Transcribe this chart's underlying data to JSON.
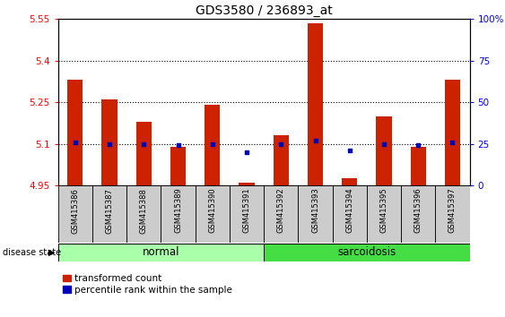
{
  "title": "GDS3580 / 236893_at",
  "samples": [
    "GSM415386",
    "GSM415387",
    "GSM415388",
    "GSM415389",
    "GSM415390",
    "GSM415391",
    "GSM415392",
    "GSM415393",
    "GSM415394",
    "GSM415395",
    "GSM415396",
    "GSM415397"
  ],
  "transformed_counts": [
    5.33,
    5.26,
    5.18,
    5.09,
    5.24,
    4.96,
    5.13,
    5.535,
    4.975,
    5.2,
    5.09,
    5.33
  ],
  "percentile_ranks": [
    26,
    25,
    25,
    24,
    25,
    20,
    25,
    27,
    21,
    25,
    24,
    26
  ],
  "disease_groups": [
    {
      "label": "normal",
      "start": 0,
      "end": 6,
      "color": "#AAFFAA"
    },
    {
      "label": "sarcoidosis",
      "start": 6,
      "end": 12,
      "color": "#44DD44"
    }
  ],
  "ylim_left": [
    4.95,
    5.55
  ],
  "ylim_right": [
    0,
    100
  ],
  "yticks_left": [
    4.95,
    5.1,
    5.25,
    5.4,
    5.55
  ],
  "yticks_right": [
    0,
    25,
    50,
    75,
    100
  ],
  "ytick_labels_left": [
    "4.95",
    "5.1",
    "5.25",
    "5.4",
    "5.55"
  ],
  "ytick_labels_right": [
    "0",
    "25",
    "50",
    "75",
    "100%"
  ],
  "bar_color": "#CC2200",
  "dot_color": "#0000BB",
  "bar_width": 0.45,
  "background_plot": "#ffffff",
  "title_fontsize": 10,
  "tick_fontsize": 7.5,
  "legend_fontsize": 7.5,
  "group_label_fontsize": 8.5,
  "sample_fontsize": 6,
  "dotted_lines": [
    5.1,
    5.25,
    5.4
  ]
}
